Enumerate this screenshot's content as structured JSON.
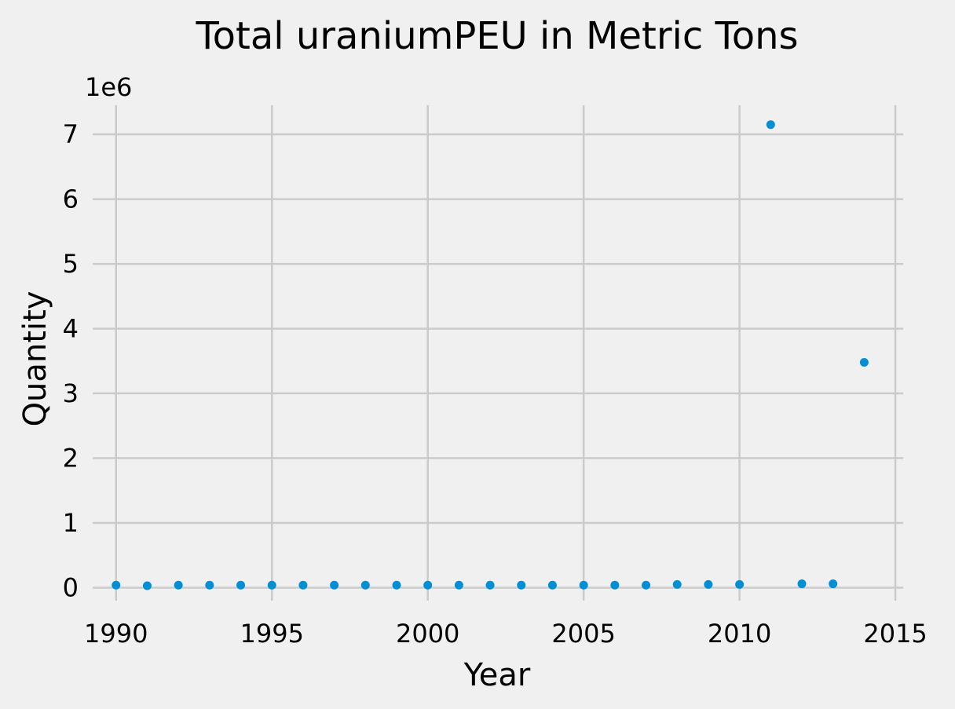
{
  "chart_data": {
    "type": "scatter",
    "title": "Total uraniumPEU in Metric Tons",
    "xlabel": "Year",
    "ylabel": "Quantity",
    "y_offset_label": "1e6",
    "xlim": [
      1989.25,
      2015.25
    ],
    "ylim": [
      -0.2,
      7.45
    ],
    "x_ticks": [
      1990,
      1995,
      2000,
      2005,
      2010,
      2015
    ],
    "y_ticks": [
      0,
      1,
      2,
      3,
      4,
      5,
      6,
      7
    ],
    "y_tick_labels": [
      "0",
      "1",
      "2",
      "3",
      "4",
      "5",
      "6",
      "7"
    ],
    "grid": true,
    "series": [
      {
        "color": "#008fd5",
        "x": [
          1990,
          1991,
          1992,
          1993,
          1994,
          1995,
          1996,
          1997,
          1998,
          1999,
          2000,
          2001,
          2002,
          2003,
          2004,
          2005,
          2006,
          2007,
          2008,
          2009,
          2010,
          2011,
          2012,
          2013,
          2014
        ],
        "y": [
          0.04,
          0.03,
          0.04,
          0.04,
          0.04,
          0.04,
          0.04,
          0.04,
          0.04,
          0.04,
          0.04,
          0.04,
          0.04,
          0.04,
          0.04,
          0.04,
          0.04,
          0.04,
          0.05,
          0.05,
          0.05,
          7.15,
          0.06,
          0.06,
          3.48
        ]
      }
    ]
  }
}
